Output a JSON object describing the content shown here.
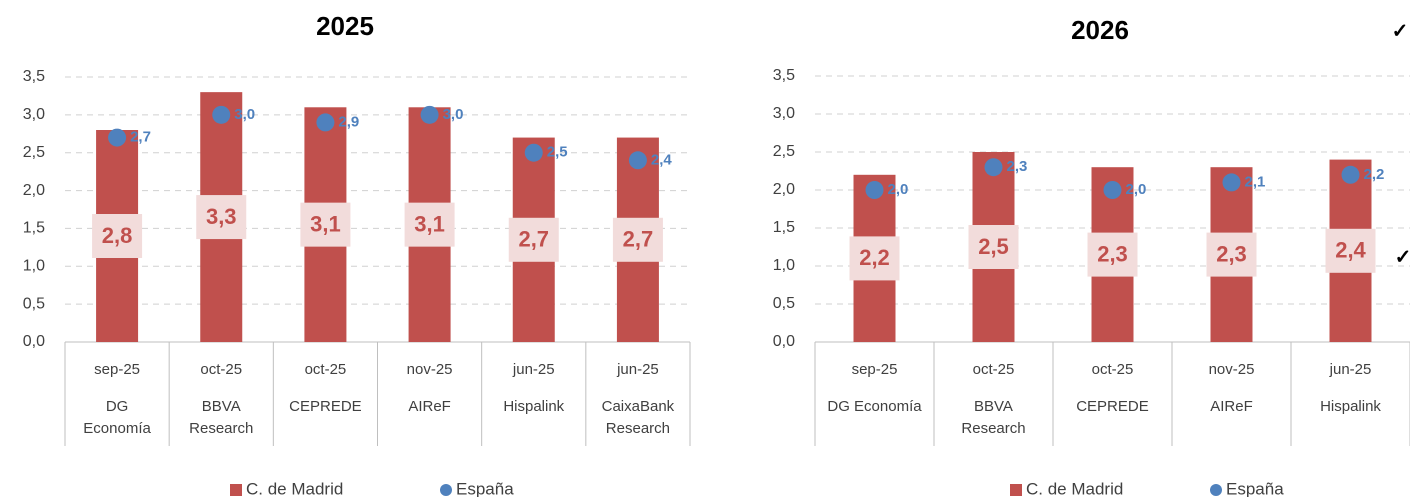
{
  "chart_data": [
    {
      "type": "bar_dot",
      "title": "2025",
      "categories": [
        "sep-25",
        "oct-25",
        "oct-25",
        "nov-25",
        "jun-25",
        "jun-25"
      ],
      "sources": [
        "DG Economía",
        "BBVA Research",
        "CEPREDE",
        "AIReF",
        "Hispalink",
        "CaixaBank Research"
      ],
      "series": [
        {
          "name": "C. de Madrid",
          "color": "#c0504d",
          "kind": "bar",
          "values": [
            2.8,
            3.3,
            3.1,
            3.1,
            2.7,
            2.7
          ],
          "value_labels": [
            "2,8",
            "3,3",
            "3,1",
            "3,1",
            "2,7",
            "2,7"
          ]
        },
        {
          "name": "España",
          "color": "#4f81bd",
          "kind": "dot",
          "values": [
            2.7,
            3.0,
            2.9,
            3.0,
            2.5,
            2.4
          ],
          "value_labels": [
            "2,7",
            "3,0",
            "2,9",
            "3,0",
            "2,5",
            "2,4"
          ]
        }
      ],
      "ylim": [
        0,
        3.5
      ],
      "yticks": [
        {
          "value": 0,
          "label": "0,0"
        },
        {
          "value": 0.5,
          "label": "0,5"
        },
        {
          "value": 1,
          "label": "1,0"
        },
        {
          "value": 1.5,
          "label": "1,5"
        },
        {
          "value": 2,
          "label": "2,0"
        },
        {
          "value": 2.5,
          "label": "2,5"
        },
        {
          "value": 3,
          "label": "3,0"
        },
        {
          "value": 3.5,
          "label": "3,5"
        }
      ],
      "grid": true
    },
    {
      "type": "bar_dot",
      "title": "2026",
      "categories": [
        "sep-25",
        "oct-25",
        "oct-25",
        "nov-25",
        "jun-25"
      ],
      "sources": [
        "DG Economía",
        "BBVA Research",
        "CEPREDE",
        "AIReF",
        "Hispalink"
      ],
      "series": [
        {
          "name": "C. de Madrid",
          "color": "#c0504d",
          "kind": "bar",
          "values": [
            2.2,
            2.5,
            2.3,
            2.3,
            2.4
          ],
          "value_labels": [
            "2,2",
            "2,5",
            "2,3",
            "2,3",
            "2,4"
          ]
        },
        {
          "name": "España",
          "color": "#4f81bd",
          "kind": "dot",
          "values": [
            2.0,
            2.3,
            2.0,
            2.1,
            2.2
          ],
          "value_labels": [
            "2,0",
            "2,3",
            "2,0",
            "2,1",
            "2,2"
          ]
        }
      ],
      "ylim": [
        0,
        3.5
      ],
      "yticks": [
        {
          "value": 0,
          "label": "0,0"
        },
        {
          "value": 0.5,
          "label": "0,5"
        },
        {
          "value": 1,
          "label": "1,0"
        },
        {
          "value": 1.5,
          "label": "1,5"
        },
        {
          "value": 2,
          "label": "2,0"
        },
        {
          "value": 2.5,
          "label": "2,5"
        },
        {
          "value": 3,
          "label": "3,0"
        },
        {
          "value": 3.5,
          "label": "3,5"
        }
      ],
      "grid": true,
      "annotations": [
        "✓",
        "✓"
      ]
    }
  ]
}
